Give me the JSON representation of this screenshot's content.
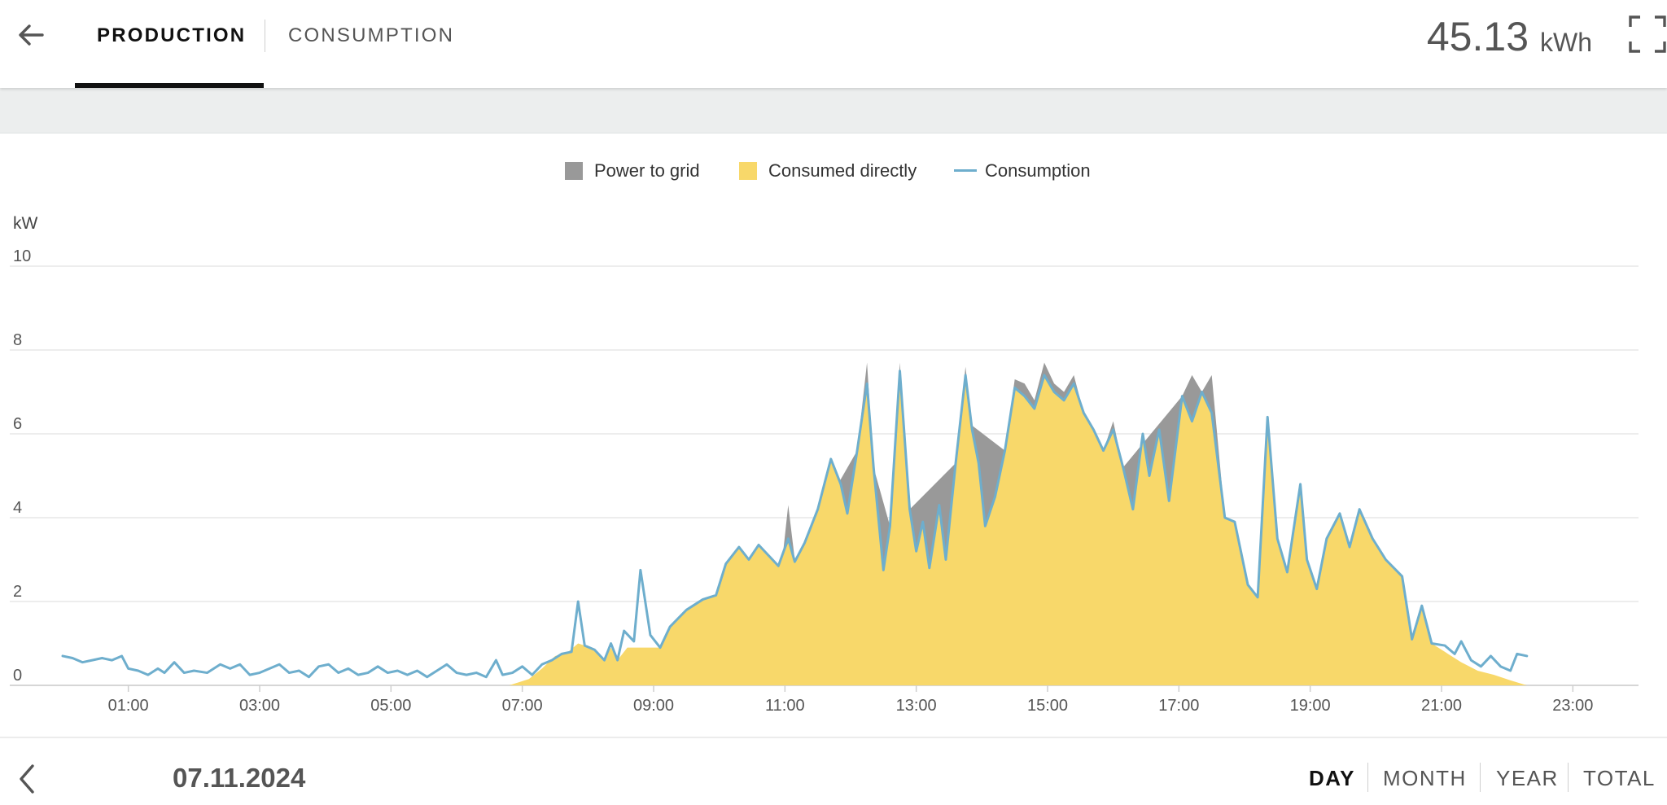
{
  "header": {
    "tabs": [
      {
        "label": "PRODUCTION",
        "active": true
      },
      {
        "label": "CONSUMPTION",
        "active": false
      }
    ],
    "total_value": "45.13",
    "total_unit": "kWh"
  },
  "legend": [
    {
      "label": "Power to grid",
      "color": "#999999",
      "kind": "area"
    },
    {
      "label": "Consumed directly",
      "color": "#f8d86a",
      "kind": "area"
    },
    {
      "label": "Consumption",
      "color": "#6eaecd",
      "kind": "line"
    }
  ],
  "footer": {
    "date": "07.11.2024",
    "periods": [
      {
        "label": "DAY",
        "active": true
      },
      {
        "label": "MONTH",
        "active": false
      },
      {
        "label": "YEAR",
        "active": false
      },
      {
        "label": "TOTAL",
        "active": false
      }
    ]
  },
  "chart_data": {
    "type": "area",
    "ylabel": "kW",
    "ylim": [
      0,
      10
    ],
    "yticks": [
      0,
      2,
      4,
      6,
      8,
      10
    ],
    "xticks": [
      "01:00",
      "03:00",
      "05:00",
      "07:00",
      "09:00",
      "11:00",
      "13:00",
      "15:00",
      "17:00",
      "19:00",
      "21:00",
      "23:00"
    ],
    "x_unit": "hours",
    "xlim": [
      0,
      24
    ],
    "grid": true,
    "legend_position": "top-center",
    "series": [
      {
        "name": "Consumption",
        "kind": "line",
        "color": "#6eaecd",
        "points": [
          [
            0.0,
            0.7
          ],
          [
            0.15,
            0.65
          ],
          [
            0.3,
            0.55
          ],
          [
            0.45,
            0.6
          ],
          [
            0.6,
            0.65
          ],
          [
            0.75,
            0.6
          ],
          [
            0.9,
            0.7
          ],
          [
            1.0,
            0.4
          ],
          [
            1.15,
            0.35
          ],
          [
            1.3,
            0.25
          ],
          [
            1.45,
            0.4
          ],
          [
            1.55,
            0.3
          ],
          [
            1.7,
            0.55
          ],
          [
            1.85,
            0.3
          ],
          [
            2.0,
            0.35
          ],
          [
            2.2,
            0.3
          ],
          [
            2.4,
            0.5
          ],
          [
            2.55,
            0.4
          ],
          [
            2.7,
            0.5
          ],
          [
            2.85,
            0.25
          ],
          [
            3.0,
            0.3
          ],
          [
            3.15,
            0.4
          ],
          [
            3.3,
            0.5
          ],
          [
            3.45,
            0.3
          ],
          [
            3.6,
            0.35
          ],
          [
            3.75,
            0.2
          ],
          [
            3.9,
            0.45
          ],
          [
            4.05,
            0.5
          ],
          [
            4.2,
            0.3
          ],
          [
            4.35,
            0.4
          ],
          [
            4.5,
            0.25
          ],
          [
            4.65,
            0.3
          ],
          [
            4.8,
            0.45
          ],
          [
            4.95,
            0.3
          ],
          [
            5.1,
            0.35
          ],
          [
            5.25,
            0.25
          ],
          [
            5.4,
            0.35
          ],
          [
            5.55,
            0.2
          ],
          [
            5.7,
            0.35
          ],
          [
            5.85,
            0.5
          ],
          [
            6.0,
            0.3
          ],
          [
            6.15,
            0.25
          ],
          [
            6.3,
            0.3
          ],
          [
            6.45,
            0.2
          ],
          [
            6.6,
            0.6
          ],
          [
            6.7,
            0.25
          ],
          [
            6.85,
            0.3
          ],
          [
            7.0,
            0.45
          ],
          [
            7.15,
            0.25
          ],
          [
            7.3,
            0.5
          ],
          [
            7.45,
            0.6
          ],
          [
            7.6,
            0.75
          ],
          [
            7.75,
            0.8
          ],
          [
            7.85,
            2.0
          ],
          [
            7.95,
            0.95
          ],
          [
            8.1,
            0.85
          ],
          [
            8.25,
            0.6
          ],
          [
            8.35,
            1.0
          ],
          [
            8.45,
            0.6
          ],
          [
            8.55,
            1.3
          ],
          [
            8.7,
            1.05
          ],
          [
            8.8,
            2.75
          ],
          [
            8.95,
            1.2
          ],
          [
            9.1,
            0.9
          ],
          [
            9.25,
            1.4
          ],
          [
            9.5,
            1.8
          ],
          [
            9.75,
            2.05
          ],
          [
            9.95,
            2.15
          ],
          [
            10.1,
            2.9
          ],
          [
            10.3,
            3.3
          ],
          [
            10.45,
            3.0
          ],
          [
            10.6,
            3.35
          ],
          [
            10.75,
            3.1
          ],
          [
            10.9,
            2.85
          ],
          [
            11.05,
            3.5
          ],
          [
            11.15,
            2.95
          ],
          [
            11.3,
            3.4
          ],
          [
            11.5,
            4.2
          ],
          [
            11.7,
            5.4
          ],
          [
            11.85,
            4.8
          ],
          [
            11.95,
            4.1
          ],
          [
            12.1,
            5.6
          ],
          [
            12.25,
            7.2
          ],
          [
            12.35,
            5.2
          ],
          [
            12.5,
            2.75
          ],
          [
            12.6,
            3.8
          ],
          [
            12.75,
            7.5
          ],
          [
            12.9,
            4.2
          ],
          [
            13.0,
            3.2
          ],
          [
            13.1,
            3.9
          ],
          [
            13.2,
            2.8
          ],
          [
            13.35,
            4.3
          ],
          [
            13.45,
            3.0
          ],
          [
            13.6,
            5.3
          ],
          [
            13.75,
            7.4
          ],
          [
            13.85,
            6.1
          ],
          [
            13.95,
            5.3
          ],
          [
            14.05,
            3.8
          ],
          [
            14.2,
            4.5
          ],
          [
            14.35,
            5.6
          ],
          [
            14.5,
            7.1
          ],
          [
            14.65,
            6.9
          ],
          [
            14.8,
            6.6
          ],
          [
            14.95,
            7.4
          ],
          [
            15.1,
            7.0
          ],
          [
            15.25,
            6.8
          ],
          [
            15.4,
            7.2
          ],
          [
            15.55,
            6.5
          ],
          [
            15.7,
            6.1
          ],
          [
            15.85,
            5.6
          ],
          [
            16.0,
            6.1
          ],
          [
            16.15,
            5.2
          ],
          [
            16.3,
            4.2
          ],
          [
            16.45,
            6.0
          ],
          [
            16.55,
            5.0
          ],
          [
            16.7,
            6.1
          ],
          [
            16.85,
            4.4
          ],
          [
            17.05,
            6.9
          ],
          [
            17.2,
            6.3
          ],
          [
            17.35,
            7.0
          ],
          [
            17.5,
            6.5
          ],
          [
            17.7,
            4.0
          ],
          [
            17.85,
            3.9
          ],
          [
            18.05,
            2.4
          ],
          [
            18.2,
            2.1
          ],
          [
            18.35,
            6.4
          ],
          [
            18.5,
            3.5
          ],
          [
            18.65,
            2.7
          ],
          [
            18.85,
            4.8
          ],
          [
            18.95,
            3.0
          ],
          [
            19.1,
            2.3
          ],
          [
            19.25,
            3.5
          ],
          [
            19.45,
            4.1
          ],
          [
            19.6,
            3.3
          ],
          [
            19.75,
            4.2
          ],
          [
            19.95,
            3.5
          ],
          [
            20.15,
            3.0
          ],
          [
            20.4,
            2.6
          ],
          [
            20.55,
            1.1
          ],
          [
            20.7,
            1.9
          ],
          [
            20.85,
            1.0
          ],
          [
            21.05,
            0.95
          ],
          [
            21.2,
            0.75
          ],
          [
            21.3,
            1.05
          ],
          [
            21.45,
            0.6
          ],
          [
            21.6,
            0.45
          ],
          [
            21.75,
            0.7
          ],
          [
            21.9,
            0.45
          ],
          [
            22.05,
            0.35
          ],
          [
            22.15,
            0.75
          ],
          [
            22.3,
            0.7
          ]
        ]
      },
      {
        "name": "Consumed directly",
        "kind": "area",
        "color": "#f8d86a",
        "points": [
          [
            6.8,
            0.0
          ],
          [
            7.1,
            0.15
          ],
          [
            7.3,
            0.4
          ],
          [
            7.5,
            0.7
          ],
          [
            7.7,
            0.8
          ],
          [
            7.85,
            1.0
          ],
          [
            7.95,
            0.95
          ],
          [
            8.1,
            0.85
          ],
          [
            8.25,
            0.6
          ],
          [
            8.35,
            0.9
          ],
          [
            8.45,
            0.6
          ],
          [
            8.6,
            0.9
          ],
          [
            8.8,
            0.9
          ],
          [
            8.95,
            0.9
          ],
          [
            9.1,
            0.9
          ],
          [
            9.25,
            1.4
          ],
          [
            9.5,
            1.8
          ],
          [
            9.75,
            2.05
          ],
          [
            9.95,
            2.15
          ],
          [
            10.1,
            2.9
          ],
          [
            10.3,
            3.3
          ],
          [
            10.45,
            3.0
          ],
          [
            10.6,
            3.35
          ],
          [
            10.75,
            3.1
          ],
          [
            10.9,
            2.85
          ],
          [
            11.05,
            3.4
          ],
          [
            11.15,
            2.95
          ],
          [
            11.3,
            3.4
          ],
          [
            11.5,
            4.2
          ],
          [
            11.7,
            5.4
          ],
          [
            11.85,
            4.8
          ],
          [
            11.95,
            4.1
          ],
          [
            12.1,
            5.6
          ],
          [
            12.25,
            7.2
          ],
          [
            12.35,
            5.2
          ],
          [
            12.5,
            2.75
          ],
          [
            12.6,
            3.8
          ],
          [
            12.75,
            7.5
          ],
          [
            12.9,
            4.2
          ],
          [
            13.0,
            3.2
          ],
          [
            13.1,
            3.9
          ],
          [
            13.2,
            2.8
          ],
          [
            13.35,
            4.3
          ],
          [
            13.45,
            3.0
          ],
          [
            13.6,
            5.3
          ],
          [
            13.75,
            7.4
          ],
          [
            13.85,
            6.1
          ],
          [
            13.95,
            5.3
          ],
          [
            14.05,
            3.8
          ],
          [
            14.2,
            4.5
          ],
          [
            14.35,
            5.6
          ],
          [
            14.5,
            7.1
          ],
          [
            14.65,
            6.9
          ],
          [
            14.8,
            6.6
          ],
          [
            14.95,
            7.4
          ],
          [
            15.1,
            7.0
          ],
          [
            15.25,
            6.8
          ],
          [
            15.4,
            7.2
          ],
          [
            15.55,
            6.5
          ],
          [
            15.7,
            6.1
          ],
          [
            15.85,
            5.6
          ],
          [
            16.0,
            6.1
          ],
          [
            16.15,
            5.2
          ],
          [
            16.3,
            4.2
          ],
          [
            16.45,
            6.0
          ],
          [
            16.55,
            5.0
          ],
          [
            16.7,
            6.1
          ],
          [
            16.85,
            4.4
          ],
          [
            17.05,
            6.9
          ],
          [
            17.2,
            6.3
          ],
          [
            17.35,
            7.0
          ],
          [
            17.5,
            6.5
          ],
          [
            17.7,
            4.0
          ],
          [
            17.85,
            3.9
          ],
          [
            18.05,
            2.4
          ],
          [
            18.2,
            2.1
          ],
          [
            18.35,
            6.4
          ],
          [
            18.5,
            3.5
          ],
          [
            18.65,
            2.7
          ],
          [
            18.85,
            4.8
          ],
          [
            18.95,
            3.0
          ],
          [
            19.1,
            2.3
          ],
          [
            19.25,
            3.5
          ],
          [
            19.45,
            4.1
          ],
          [
            19.6,
            3.3
          ],
          [
            19.75,
            4.2
          ],
          [
            19.95,
            3.5
          ],
          [
            20.15,
            3.0
          ],
          [
            20.4,
            2.6
          ],
          [
            20.55,
            1.1
          ],
          [
            20.7,
            1.9
          ],
          [
            20.85,
            1.0
          ],
          [
            21.05,
            0.8
          ],
          [
            21.3,
            0.55
          ],
          [
            21.55,
            0.35
          ],
          [
            21.8,
            0.25
          ],
          [
            22.05,
            0.12
          ],
          [
            22.3,
            0.0
          ]
        ]
      },
      {
        "name": "Power to grid",
        "kind": "area",
        "color": "#999999",
        "points": [
          [
            10.95,
            2.85
          ],
          [
            11.05,
            4.3
          ],
          [
            11.15,
            3.0
          ],
          [
            12.1,
            5.6
          ],
          [
            12.25,
            7.7
          ],
          [
            12.35,
            5.2
          ],
          [
            12.6,
            3.8
          ],
          [
            12.75,
            7.7
          ],
          [
            12.9,
            4.2
          ],
          [
            13.6,
            5.3
          ],
          [
            13.75,
            7.6
          ],
          [
            13.85,
            6.2
          ],
          [
            14.35,
            5.6
          ],
          [
            14.5,
            7.3
          ],
          [
            14.65,
            7.2
          ],
          [
            14.8,
            6.8
          ],
          [
            14.95,
            7.7
          ],
          [
            15.1,
            7.2
          ],
          [
            15.25,
            7.0
          ],
          [
            15.4,
            7.4
          ],
          [
            15.55,
            6.5
          ],
          [
            15.85,
            5.6
          ],
          [
            16.0,
            6.3
          ],
          [
            16.15,
            5.2
          ],
          [
            17.05,
            6.9
          ],
          [
            17.2,
            7.4
          ],
          [
            17.35,
            7.0
          ],
          [
            17.5,
            7.4
          ],
          [
            17.7,
            4.0
          ]
        ]
      }
    ]
  }
}
